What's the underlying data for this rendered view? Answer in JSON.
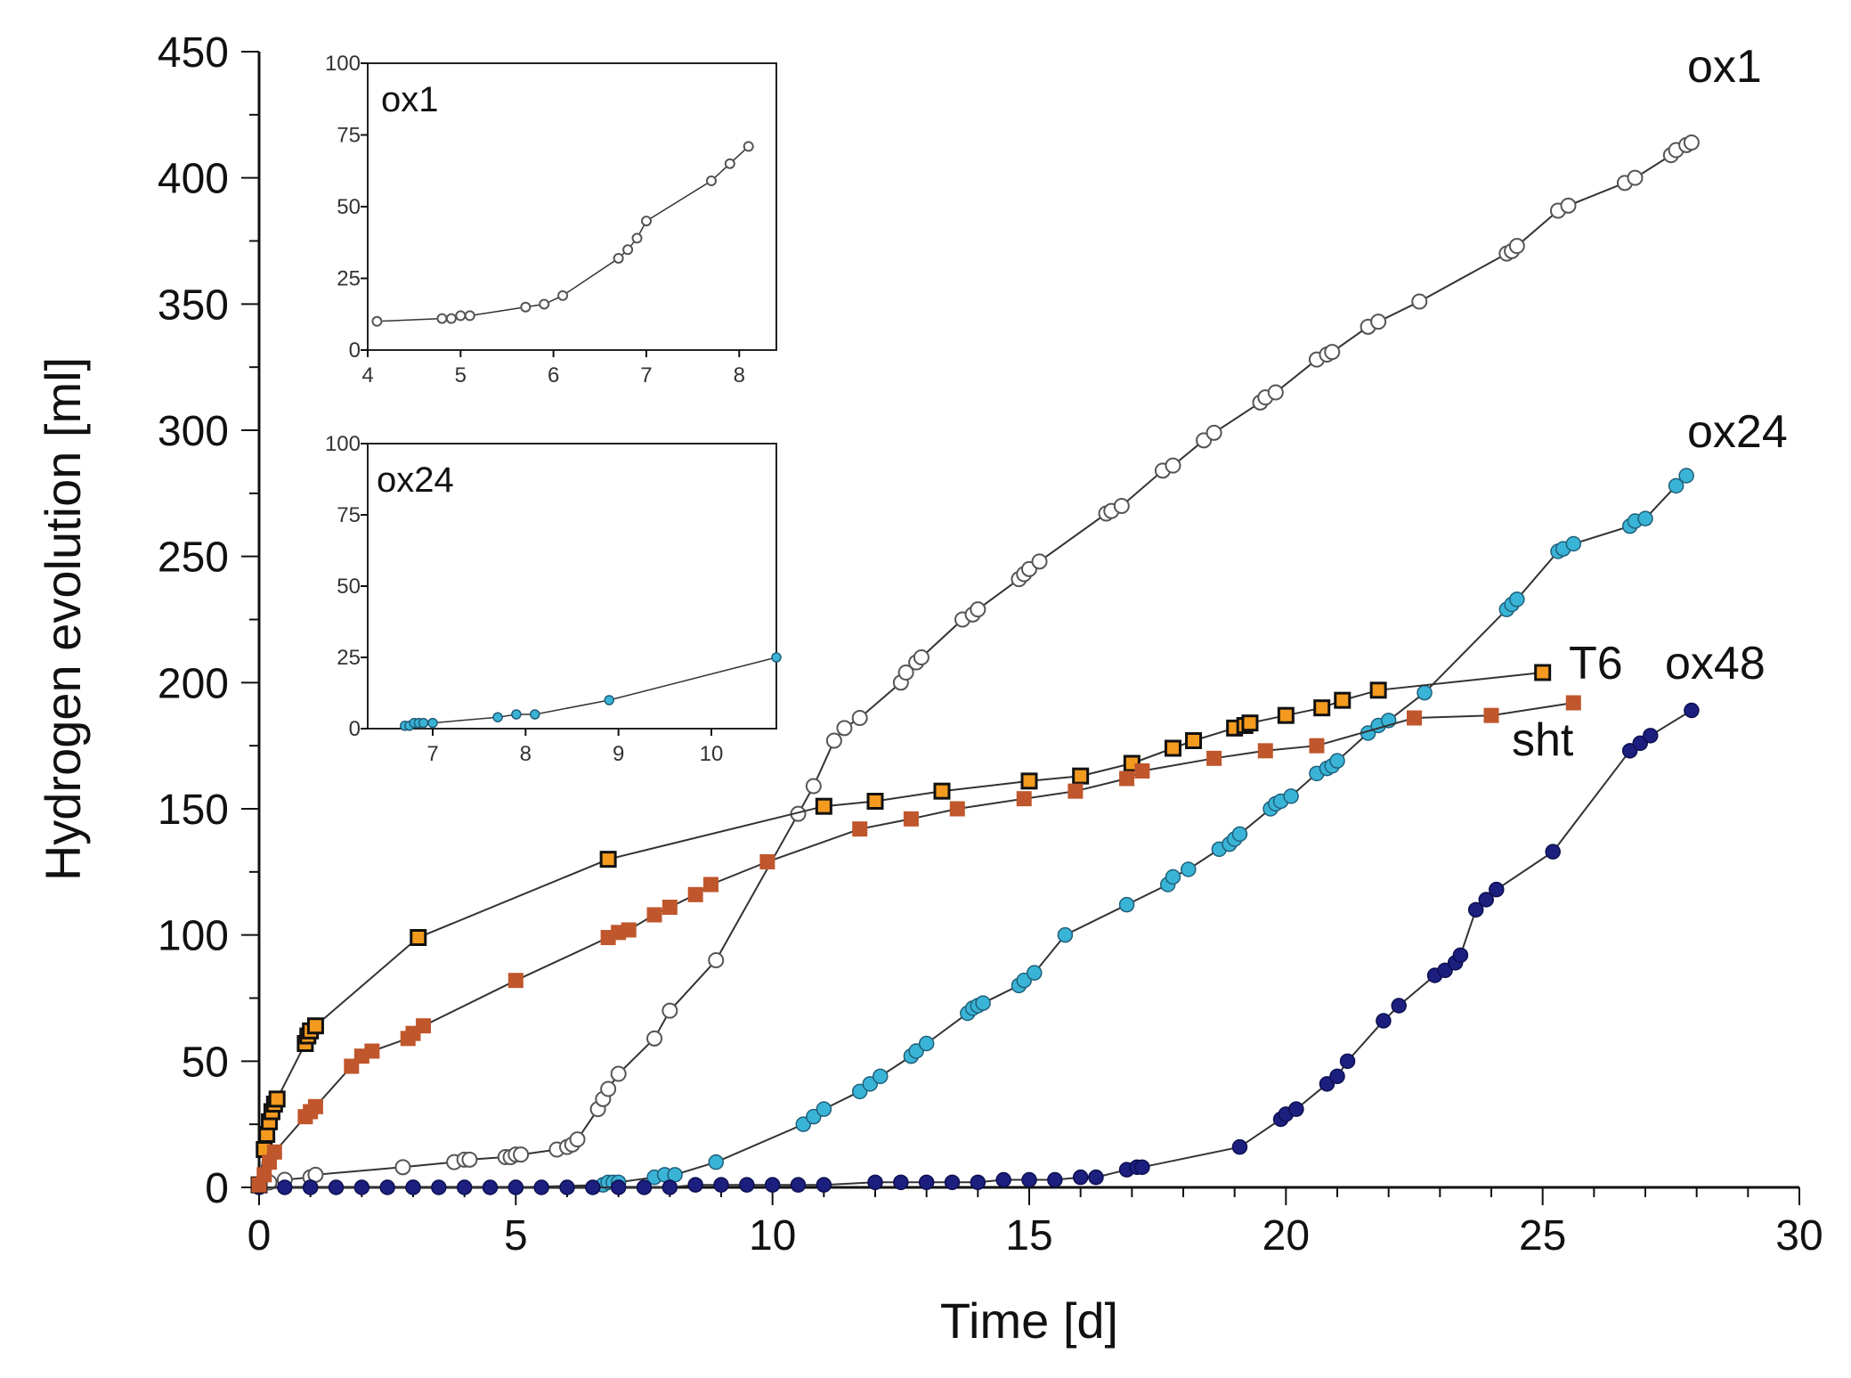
{
  "chart_data": [
    {
      "id": "main",
      "type": "scatter",
      "xlabel": "Time [d]",
      "ylabel": "Hydrogen evolution [ml]",
      "xlim": [
        0,
        30
      ],
      "ylim": [
        0,
        450
      ],
      "xticks": [
        0,
        5,
        10,
        15,
        20,
        25,
        30
      ],
      "yticks": [
        0,
        50,
        100,
        150,
        200,
        250,
        300,
        350,
        400,
        450
      ],
      "series": [
        {
          "name": "ox1",
          "label": "ox1",
          "marker": "circle-open",
          "color": "#ffffff",
          "stroke": "#555555",
          "x": [
            0,
            0.2,
            0.5,
            1.0,
            1.1,
            2.8,
            3.8,
            4.0,
            4.1,
            4.8,
            4.9,
            5.0,
            5.1,
            5.8,
            6.0,
            6.1,
            6.2,
            6.6,
            6.7,
            6.8,
            7.0,
            7.7,
            8.0,
            8.9,
            10.5,
            10.8,
            11.2,
            11.4,
            11.7,
            12.5,
            12.6,
            12.8,
            12.9,
            13.7,
            13.9,
            14.0,
            14.8,
            14.9,
            15.0,
            15.2,
            16.5,
            16.6,
            16.8,
            17.6,
            17.8,
            18.4,
            18.6,
            19.5,
            19.6,
            19.8,
            20.6,
            20.8,
            20.9,
            21.6,
            21.8,
            22.6,
            24.3,
            24.4,
            24.5,
            25.3,
            25.5,
            26.6,
            26.8,
            27.5,
            27.6,
            27.8,
            27.9
          ],
          "y": [
            1,
            2,
            3,
            4,
            5,
            8,
            10,
            11,
            11,
            12,
            12,
            13,
            13,
            15,
            16,
            17,
            19,
            31,
            35,
            39,
            45,
            59,
            70,
            90,
            148,
            159,
            177,
            182,
            186,
            200,
            204,
            208,
            210,
            225,
            227,
            229,
            241,
            243,
            245,
            248,
            267,
            268,
            270,
            284,
            286,
            296,
            299,
            311,
            313,
            315,
            328,
            330,
            331,
            341,
            343,
            351,
            370,
            371,
            373,
            387,
            389,
            398,
            400,
            409,
            411,
            413,
            414
          ]
        },
        {
          "name": "ox24",
          "label": "ox24",
          "marker": "circle",
          "color": "#3ab4d6",
          "stroke": "#1f5f7a",
          "x": [
            0,
            1.0,
            3.0,
            5.0,
            6.7,
            6.8,
            6.9,
            7.0,
            7.7,
            7.9,
            8.1,
            8.9,
            10.6,
            10.8,
            11.0,
            11.7,
            11.9,
            12.1,
            12.7,
            12.8,
            13.0,
            13.8,
            13.9,
            14.0,
            14.1,
            14.8,
            14.9,
            15.1,
            15.7,
            16.9,
            17.7,
            17.8,
            18.1,
            18.7,
            18.9,
            19.0,
            19.1,
            19.7,
            19.8,
            19.9,
            20.1,
            20.6,
            20.8,
            20.9,
            21.0,
            21.6,
            21.8,
            22.0,
            22.7,
            24.3,
            24.4,
            24.5,
            25.3,
            25.4,
            25.6,
            26.7,
            26.8,
            27.0,
            27.6,
            27.8
          ],
          "y": [
            0,
            0,
            0,
            0,
            1,
            2,
            2,
            2,
            4,
            5,
            5,
            10,
            25,
            28,
            31,
            38,
            41,
            44,
            52,
            54,
            57,
            69,
            71,
            72,
            73,
            80,
            82,
            85,
            100,
            112,
            120,
            123,
            126,
            134,
            136,
            138,
            140,
            150,
            152,
            153,
            155,
            164,
            166,
            167,
            169,
            180,
            183,
            185,
            196,
            229,
            231,
            233,
            252,
            253,
            255,
            262,
            264,
            265,
            278,
            282
          ]
        },
        {
          "name": "ox48",
          "label": "ox48",
          "marker": "circle",
          "color": "#1c1f7e",
          "stroke": "#0d0f50",
          "x": [
            0,
            0.5,
            1.0,
            1.5,
            2.0,
            2.5,
            3.0,
            3.5,
            4.0,
            4.5,
            5.0,
            5.5,
            6.0,
            6.5,
            7.0,
            7.5,
            8.0,
            8.5,
            9.0,
            9.5,
            10.0,
            10.5,
            11.0,
            12.0,
            12.5,
            13.0,
            13.5,
            14.0,
            14.5,
            15.0,
            15.5,
            16.0,
            16.3,
            16.9,
            17.1,
            17.2,
            19.1,
            19.9,
            20.0,
            20.2,
            20.8,
            21.0,
            21.2,
            21.9,
            22.2,
            22.9,
            23.1,
            23.3,
            23.4,
            23.7,
            23.9,
            24.1,
            25.2,
            26.7,
            26.9,
            27.1,
            27.9
          ],
          "y": [
            0,
            0,
            0,
            0,
            0,
            0,
            0,
            0,
            0,
            0,
            0,
            0,
            0,
            0,
            0,
            0,
            0,
            1,
            1,
            1,
            1,
            1,
            1,
            2,
            2,
            2,
            2,
            2,
            3,
            3,
            3,
            4,
            4,
            7,
            8,
            8,
            16,
            27,
            29,
            31,
            41,
            44,
            50,
            66,
            72,
            84,
            86,
            89,
            92,
            110,
            114,
            118,
            133,
            173,
            176,
            179,
            189
          ]
        },
        {
          "name": "T6",
          "label": "T6",
          "marker": "square-outlined",
          "color": "#f39a1f",
          "stroke": "#111111",
          "x": [
            0.0,
            0.1,
            0.15,
            0.2,
            0.25,
            0.3,
            0.35,
            0.9,
            0.95,
            1.0,
            1.1,
            3.1,
            6.8,
            11.0,
            12.0,
            13.3,
            15.0,
            16.0,
            17.0,
            17.8,
            18.2,
            19.0,
            19.2,
            19.3,
            20.0,
            20.7,
            21.1,
            21.8,
            25.0
          ],
          "y": [
            1,
            15,
            21,
            26,
            30,
            33,
            35,
            57,
            60,
            62,
            64,
            99,
            130,
            151,
            153,
            157,
            161,
            163,
            168,
            174,
            177,
            182,
            183,
            184,
            187,
            190,
            193,
            197,
            204
          ]
        },
        {
          "name": "sht",
          "label": "sht",
          "marker": "square",
          "color": "#c0562c",
          "stroke": "#c0562c",
          "x": [
            0.0,
            0.1,
            0.2,
            0.3,
            0.9,
            1.0,
            1.1,
            1.8,
            2.0,
            2.2,
            2.9,
            3.0,
            3.2,
            5.0,
            6.8,
            7.0,
            7.2,
            7.7,
            8.0,
            8.5,
            8.8,
            9.9,
            11.7,
            12.7,
            13.6,
            14.9,
            15.9,
            16.9,
            17.2,
            18.6,
            19.6,
            20.6,
            22.5,
            24.0,
            25.6
          ],
          "y": [
            1,
            5,
            10,
            14,
            28,
            30,
            32,
            48,
            52,
            54,
            59,
            61,
            64,
            82,
            99,
            101,
            102,
            108,
            111,
            116,
            120,
            129,
            142,
            146,
            150,
            154,
            157,
            162,
            165,
            170,
            173,
            175,
            186,
            187,
            192
          ]
        }
      ]
    },
    {
      "id": "inset-ox1",
      "type": "line",
      "title": "ox1",
      "xlim": [
        4,
        8.4
      ],
      "ylim": [
        0,
        100
      ],
      "xticks": [
        4,
        5,
        6,
        7,
        8
      ],
      "yticks": [
        0,
        25,
        50,
        75,
        100
      ],
      "series": [
        {
          "name": "ox1",
          "marker": "circle-open",
          "color": "#ffffff",
          "stroke": "#555555",
          "x": [
            4.1,
            4.8,
            4.9,
            5.0,
            5.1,
            5.7,
            5.9,
            6.1,
            6.7,
            6.8,
            6.9,
            7.0,
            7.7,
            7.9,
            8.1
          ],
          "y": [
            10,
            11,
            11,
            12,
            12,
            15,
            16,
            19,
            32,
            35,
            39,
            45,
            59,
            65,
            71
          ]
        }
      ]
    },
    {
      "id": "inset-ox24",
      "type": "line",
      "title": "ox24",
      "xlim": [
        6.3,
        10.7
      ],
      "ylim": [
        0,
        100
      ],
      "xticks": [
        7,
        8,
        9,
        10
      ],
      "yticks": [
        0,
        25,
        50,
        75,
        100
      ],
      "series": [
        {
          "name": "ox24",
          "marker": "circle",
          "color": "#3ab4d6",
          "stroke": "#1f5f7a",
          "x": [
            6.7,
            6.75,
            6.8,
            6.85,
            6.9,
            7.0,
            7.7,
            7.9,
            8.1,
            8.9,
            10.7
          ],
          "y": [
            1,
            1,
            2,
            2,
            2,
            2,
            4,
            5,
            5,
            10,
            25
          ]
        }
      ]
    }
  ]
}
